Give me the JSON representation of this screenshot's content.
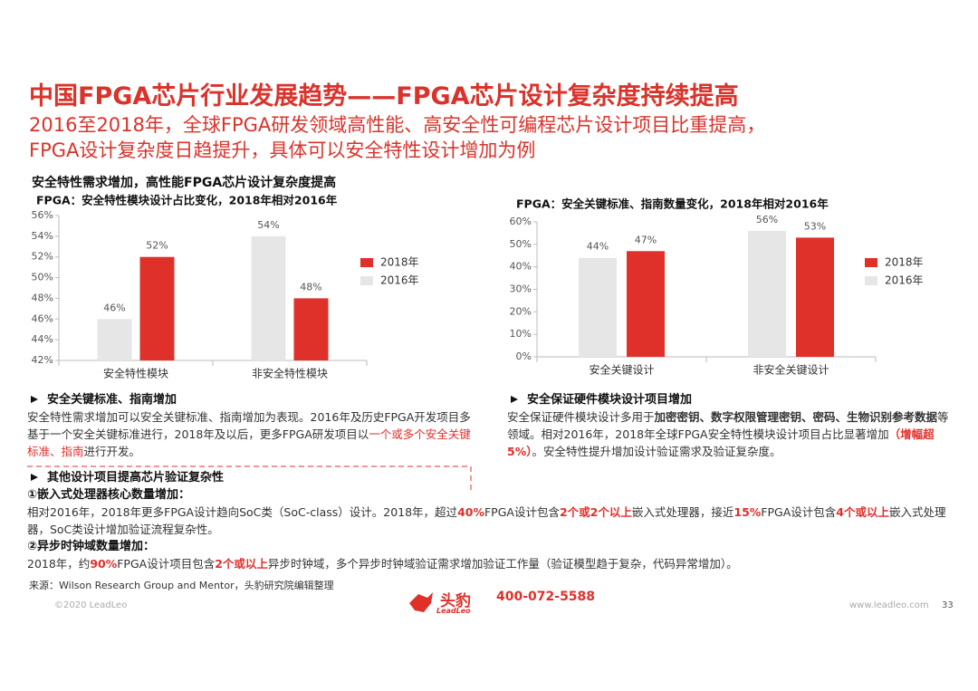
{
  "header": {
    "title": "中国FPGA芯片行业发展趋势——FPGA芯片设计复杂度持续提高",
    "subtitle": [
      "2016至2018年，全球FPGA研发领域高性能、高安全性可编程芯片设计项目比重提高，",
      "FPGA设计复杂度日趋提升，具体可以安全特性设计增加为例"
    ]
  },
  "section_title": "安全特性需求增加，高性能FPGA芯片设计复杂度提高",
  "chart_data": [
    {
      "type": "bar",
      "title": "FPGA：安全特性模块设计占比变化，2018年相对2016年",
      "categories": [
        "安全特性模块",
        "非安全特性模块"
      ],
      "series": [
        {
          "name": "2018年",
          "color": "#e0302a",
          "values": [
            52,
            48
          ],
          "value_labels": [
            "52%",
            "48%"
          ]
        },
        {
          "name": "2016年",
          "color": "#e6e6e6",
          "values": [
            46,
            54
          ],
          "value_labels": [
            "46%",
            "54%"
          ]
        }
      ],
      "ylim": [
        42,
        56
      ],
      "yticks": [
        {
          "value": 42,
          "label": "42%"
        },
        {
          "value": 44,
          "label": "44%"
        },
        {
          "value": 46,
          "label": "46%"
        },
        {
          "value": 48,
          "label": "48%"
        },
        {
          "value": 50,
          "label": "50%"
        },
        {
          "value": 52,
          "label": "52%"
        },
        {
          "value": 54,
          "label": "54%"
        },
        {
          "value": 56,
          "label": "56%"
        }
      ],
      "grid": false,
      "legend": "right"
    },
    {
      "type": "bar",
      "title": "FPGA：安全关键标准、指南数量变化，2018年相对2016年",
      "categories": [
        "安全关键设计",
        "非安全关键设计"
      ],
      "series": [
        {
          "name": "2018年",
          "color": "#e0302a",
          "values": [
            47,
            53
          ],
          "value_labels": [
            "47%",
            "53%"
          ]
        },
        {
          "name": "2016年",
          "color": "#e6e6e6",
          "values": [
            44,
            56
          ],
          "value_labels": [
            "44%",
            "56%"
          ]
        }
      ],
      "ylim": [
        0,
        60
      ],
      "yticks": [
        {
          "value": 0,
          "label": "0%"
        },
        {
          "value": 10,
          "label": "10%"
        },
        {
          "value": 20,
          "label": "20%"
        },
        {
          "value": 30,
          "label": "30%"
        },
        {
          "value": 40,
          "label": "40%"
        },
        {
          "value": 50,
          "label": "50%"
        },
        {
          "value": 60,
          "label": "60%"
        }
      ],
      "grid": false,
      "legend": "right"
    }
  ],
  "blocks": [
    {
      "heading": "安全关键标准、指南增加",
      "body": [
        {
          "text": "安全特性需求增加可以安全关键标准、指南增加为表现。2016年及历史FPGA开发项目多基于一个安全关键标准进行，2018年及以后，更多FPGA研发项目以"
        },
        {
          "text": "一个或多个安全关键标准、指南",
          "color": "#e0302a"
        },
        {
          "text": "进行开发。"
        }
      ]
    },
    {
      "heading": "安全保证硬件模块设计项目增加",
      "body": [
        {
          "text": "安全保证硬件模块设计多用于"
        },
        {
          "text": "加密密钥、数字权限管理密钥、密码、生物识别参考数据",
          "bold": true
        },
        {
          "text": "等领域。相对2016年，2018年全球FPGA安全特性模块设计项目占比显著增加"
        },
        {
          "text": "（增幅超5%）",
          "color": "#e0302a",
          "bold": true
        },
        {
          "text": "。安全特性提升增加设计验证需求及验证复杂度。"
        }
      ]
    }
  ],
  "other": {
    "heading": "其他设计项目提高芯片验证复杂性",
    "items": [
      {
        "title": "①嵌入式处理器核心数量增加：",
        "body": [
          {
            "text": "相对2016年，2018年更多FPGA设计趋向SoC类（SoC-class）设计。2018年，超过"
          },
          {
            "text": "40%",
            "color": "#e0302a",
            "bold": true
          },
          {
            "text": "FPGA设计包含"
          },
          {
            "text": "2个或2个以上",
            "color": "#e0302a",
            "bold": true
          },
          {
            "text": "嵌入式处理器，接近"
          },
          {
            "text": "15%",
            "color": "#e0302a",
            "bold": true
          },
          {
            "text": "FPGA设计包含"
          },
          {
            "text": "4个或以上",
            "color": "#e0302a",
            "bold": true
          },
          {
            "text": "嵌入式处理器，SoC类设计增加验证流程复杂性。"
          }
        ]
      },
      {
        "title": "②异步时钟域数量增加：",
        "body": [
          {
            "text": "2018年，约"
          },
          {
            "text": "90%",
            "color": "#e0302a",
            "bold": true
          },
          {
            "text": "FPGA设计项目包含"
          },
          {
            "text": "2个或以上",
            "color": "#e0302a",
            "bold": true
          },
          {
            "text": "异步时钟域，多个异步时钟域验证需求增加验证工作量（验证模型趋于复杂，代码异常增加）。"
          }
        ]
      }
    ]
  },
  "source": "来源：Wilson Research Group and Mentor，头豹研究院编辑整理",
  "footer": {
    "copyright": "©2020 LeadLeo",
    "logo_cn": "头豹",
    "logo_en": "LeadLeo",
    "phone": "400-072-5588",
    "url": "www.leadleo.com",
    "page": "33"
  }
}
